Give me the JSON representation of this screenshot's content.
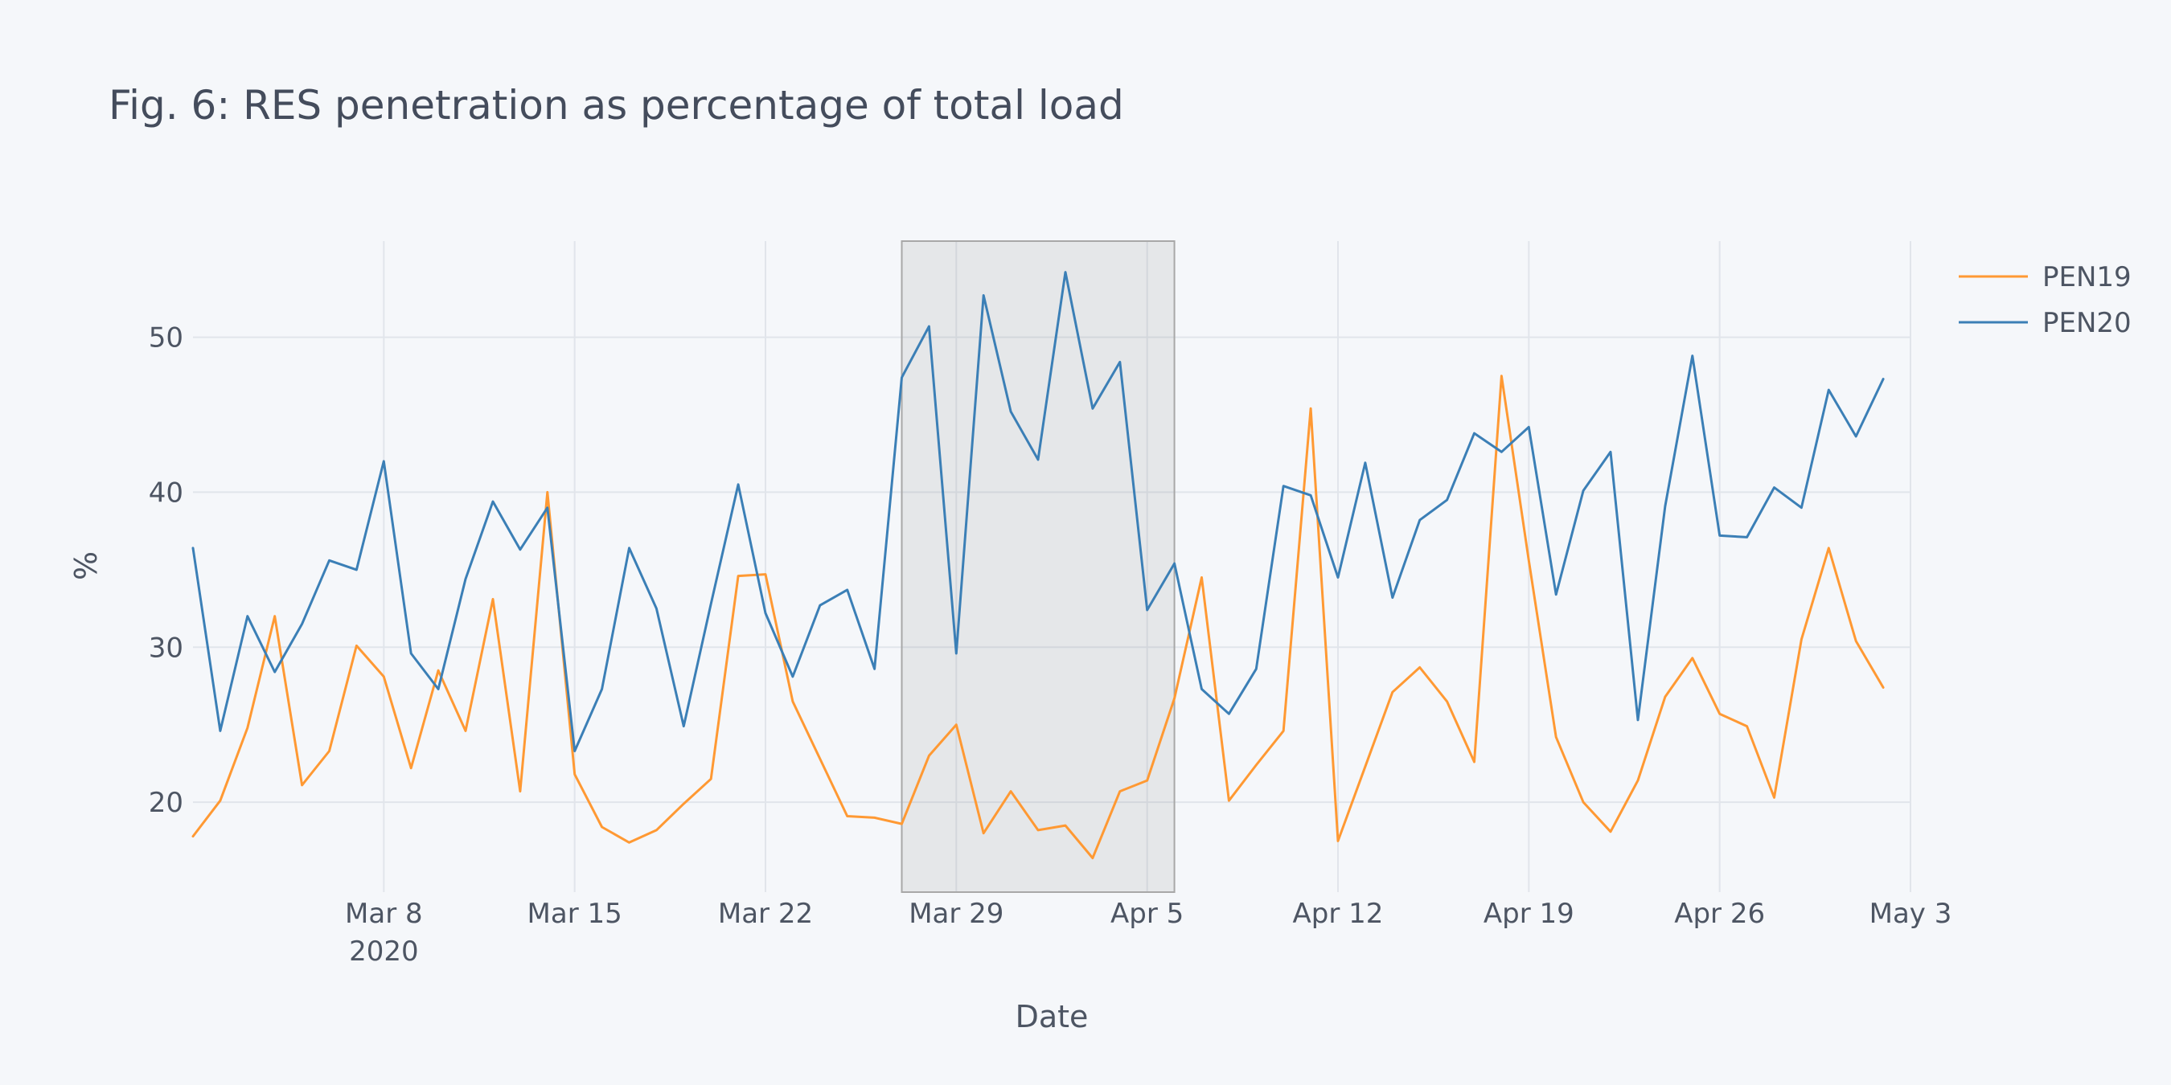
{
  "chart_data": {
    "type": "line",
    "title": "Fig. 6: RES penetration as percentage of total load",
    "xlabel": "Date",
    "ylabel": "%",
    "x_start": "2020-03-01",
    "x_end": "2020-05-03",
    "xtick_labels": [
      {
        "date": "2020-03-08",
        "label": "Mar 8",
        "sublabel": "2020"
      },
      {
        "date": "2020-03-15",
        "label": "Mar 15"
      },
      {
        "date": "2020-03-22",
        "label": "Mar 22"
      },
      {
        "date": "2020-03-29",
        "label": "Mar 29"
      },
      {
        "date": "2020-04-05",
        "label": "Apr 5"
      },
      {
        "date": "2020-04-12",
        "label": "Apr 12"
      },
      {
        "date": "2020-04-19",
        "label": "Apr 19"
      },
      {
        "date": "2020-04-26",
        "label": "Apr 26"
      },
      {
        "date": "2020-05-03",
        "label": "May 3"
      }
    ],
    "yticks": [
      20,
      30,
      40,
      50
    ],
    "ylim": [
      14.2,
      56.2
    ],
    "grid": true,
    "legend_position": "top-right",
    "highlight_region": {
      "x_start": "2020-03-27",
      "x_end": "2020-04-06"
    },
    "series": [
      {
        "name": "PEN19",
        "color": "#ff9933",
        "values": [
          17.8,
          20.1,
          24.8,
          32.0,
          21.1,
          23.3,
          30.1,
          28.1,
          22.2,
          28.5,
          24.6,
          33.1,
          20.7,
          40.0,
          21.8,
          18.4,
          17.4,
          18.2,
          19.9,
          21.5,
          34.6,
          34.7,
          26.5,
          22.8,
          19.1,
          19.0,
          18.6,
          23.0,
          25.0,
          18.0,
          20.7,
          18.2,
          18.5,
          16.4,
          20.7,
          21.4,
          26.7,
          34.5,
          20.1,
          22.4,
          24.6,
          45.4,
          17.5,
          22.3,
          27.1,
          28.7,
          26.5,
          22.6,
          47.5,
          35.6,
          24.2,
          20.0,
          18.1,
          21.4,
          26.8,
          29.3,
          25.7,
          24.9,
          20.3,
          30.5,
          36.4,
          30.4,
          27.4
        ],
        "width": 3
      },
      {
        "name": "PEN20",
        "color": "#3b7fb6",
        "values": [
          36.4,
          24.6,
          32.0,
          28.4,
          31.5,
          35.6,
          35.0,
          42.0,
          29.6,
          27.3,
          34.4,
          39.4,
          36.3,
          39.0,
          23.3,
          27.3,
          36.4,
          32.5,
          24.9,
          32.8,
          40.5,
          32.2,
          28.1,
          32.7,
          33.7,
          28.6,
          47.4,
          50.7,
          29.6,
          52.7,
          45.2,
          42.1,
          54.2,
          45.4,
          48.4,
          32.4,
          35.4,
          27.3,
          25.7,
          28.6,
          40.4,
          39.8,
          34.5,
          41.9,
          33.2,
          38.2,
          39.5,
          43.8,
          42.6,
          44.2,
          33.4,
          40.1,
          42.6,
          25.3,
          39.1,
          48.8,
          37.2,
          37.1,
          40.3,
          39.0,
          46.6,
          43.6,
          47.3
        ],
        "width": 3
      }
    ]
  }
}
